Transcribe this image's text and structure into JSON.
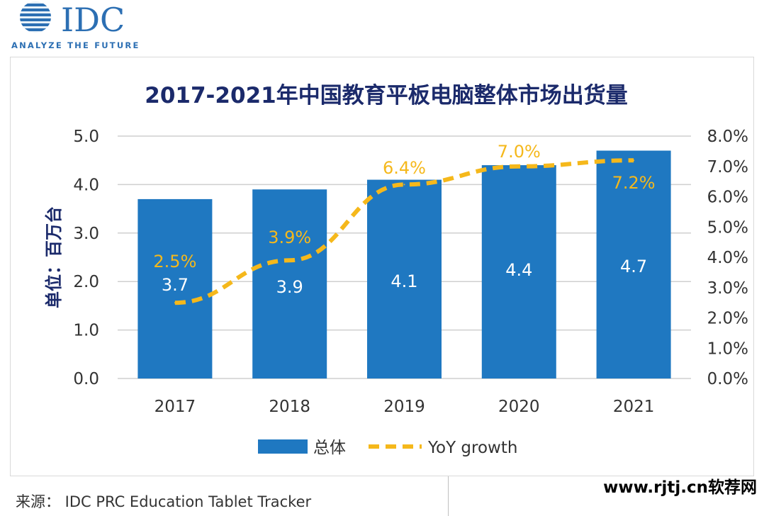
{
  "header": {
    "logo_text": "IDC",
    "logo_tagline": "ANALYZE THE FUTURE"
  },
  "colors": {
    "bar": "#1f78c1",
    "line": "#f5b81b",
    "title": "#1b2a6b",
    "axis_text": "#333333",
    "grid": "#cfcfcf"
  },
  "chart_data": {
    "type": "bar",
    "title": "2017-2021年中国教育平板电脑整体市场出货量",
    "ylabel": "单位：百万台",
    "xlabel": "",
    "categories": [
      "2017",
      "2018",
      "2019",
      "2020",
      "2021"
    ],
    "ylim": [
      0,
      5
    ],
    "yticks": [
      "0.0",
      "1.0",
      "2.0",
      "3.0",
      "4.0",
      "5.0"
    ],
    "y2lim": [
      0,
      8
    ],
    "y2ticks": [
      "0.0%",
      "1.0%",
      "2.0%",
      "3.0%",
      "4.0%",
      "5.0%",
      "6.0%",
      "7.0%",
      "8.0%"
    ],
    "grid": true,
    "legend_position": "bottom",
    "series": [
      {
        "name": "总体",
        "type": "bar",
        "axis": "left",
        "values": [
          3.7,
          3.9,
          4.1,
          4.4,
          4.7
        ],
        "labels": [
          "3.7",
          "3.9",
          "4.1",
          "4.4",
          "4.7"
        ]
      },
      {
        "name": "YoY growth",
        "type": "line",
        "style": "dashed",
        "axis": "right",
        "values": [
          2.5,
          3.9,
          6.4,
          7.0,
          7.2
        ],
        "labels": [
          "2.5%",
          "3.9%",
          "6.4%",
          "7.0%",
          "7.2%"
        ]
      }
    ]
  },
  "footer": {
    "source": "来源：  IDC PRC Education Tablet Tracker",
    "watermark": "www.rjtj.cn软荐网"
  }
}
